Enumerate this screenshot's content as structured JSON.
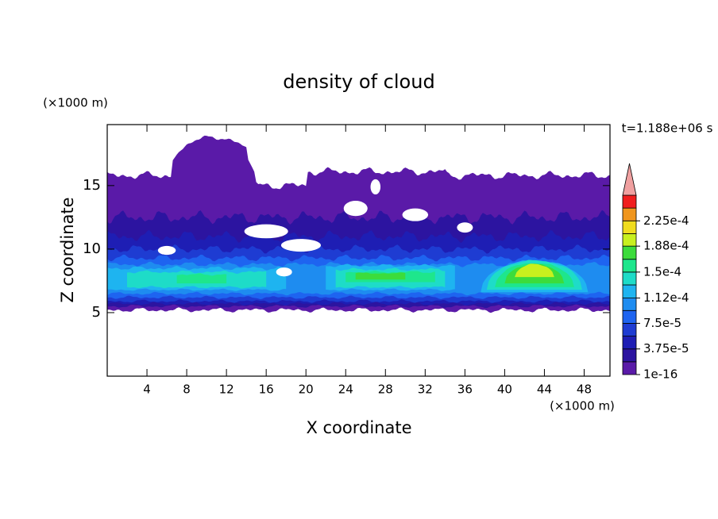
{
  "chart_data": {
    "type": "contour",
    "title": "density of cloud",
    "xlabel": "X coordinate",
    "ylabel": "Z coordinate",
    "x_unit": "(×1000 m)",
    "y_unit": "(×1000 m)",
    "time_label": "t=1.188e+06 s",
    "xlim": [
      0,
      50.6
    ],
    "ylim": [
      0,
      19.8
    ],
    "xticks": [
      4,
      8,
      12,
      16,
      20,
      24,
      28,
      32,
      36,
      40,
      44,
      48
    ],
    "yticks": [
      5,
      10,
      15
    ],
    "colorbar": {
      "levels": [
        1e-16,
        1.875e-05,
        3.75e-05,
        5.625e-05,
        7.5e-05,
        9.375e-05,
        0.000112,
        0.00013125,
        0.00015,
        0.00016875,
        0.000188,
        0.00020625,
        0.000225,
        0.00024375,
        0.0002625
      ],
      "level_labels": [
        "1e-16",
        null,
        "3.75e-5",
        null,
        "7.5e-5",
        null,
        "1.12e-4",
        null,
        "1.5e-4",
        null,
        "1.88e-4",
        null,
        "2.25e-4",
        null,
        null
      ],
      "colors": [
        "#5a1aa8",
        "#2c14a0",
        "#1e1eb4",
        "#1e3cd2",
        "#1e64f0",
        "#1e8cf0",
        "#1eb4f0",
        "#1edcc8",
        "#1ee68c",
        "#3cdc3c",
        "#c8f01e",
        "#f0dc1e",
        "#f0961e",
        "#f01e1e"
      ],
      "over_color": "#f0a0a0"
    }
  }
}
